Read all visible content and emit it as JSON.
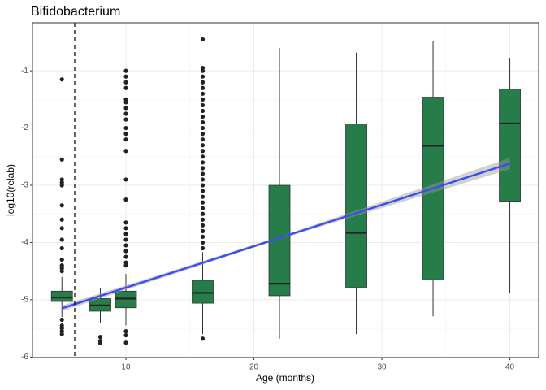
{
  "chart_data": {
    "type": "boxplot",
    "title": "Bifidobacterium",
    "x_label": "Age (months)",
    "y_label": "log10(relab)",
    "xlim": [
      2.7,
      42.25
    ],
    "ylim": [
      -6.01,
      -0.16
    ],
    "xticks": [
      10,
      20,
      30,
      40
    ],
    "yticks": [
      -6,
      -5,
      -4,
      -3,
      -2,
      -1
    ],
    "grid": true,
    "color": "#267d4a",
    "vline": 6,
    "boxes": [
      {
        "x": 5,
        "q1": -5.03,
        "median": -4.96,
        "q3": -4.85,
        "whisker_low": -5.3,
        "whisker_high": -4.6,
        "outliers": [
          -1.15,
          -2.55,
          -2.9,
          -2.95,
          -3.0,
          -3.35,
          -3.6,
          -3.75,
          -3.95,
          -4.1,
          -4.3,
          -4.4,
          -4.45,
          -4.5,
          -5.35,
          -5.45,
          -5.5,
          -5.55,
          -5.6
        ]
      },
      {
        "x": 8,
        "q1": -5.2,
        "median": -5.1,
        "q3": -4.98,
        "whisker_low": -5.4,
        "whisker_high": -4.8,
        "outliers": [
          -5.65,
          -5.72,
          -5.76
        ]
      },
      {
        "x": 10,
        "q1": -5.14,
        "median": -4.98,
        "q3": -4.85,
        "whisker_low": -5.45,
        "whisker_high": -4.55,
        "outliers": [
          -1.0,
          -1.1,
          -1.2,
          -1.3,
          -1.5,
          -1.55,
          -1.65,
          -1.75,
          -1.85,
          -2.0,
          -2.1,
          -2.2,
          -2.4,
          -2.9,
          -3.25,
          -3.65,
          -3.75,
          -3.85,
          -3.95,
          -4.05,
          -4.15,
          -4.25,
          -4.35,
          -4.4,
          -5.55,
          -5.62,
          -5.75
        ]
      },
      {
        "x": 16,
        "q1": -5.06,
        "median": -4.88,
        "q3": -4.66,
        "whisker_low": -5.6,
        "whisker_high": -4.17,
        "outliers": [
          -0.45,
          -0.95,
          -1.0,
          -1.1,
          -1.2,
          -1.3,
          -1.4,
          -1.5,
          -1.6,
          -1.7,
          -1.8,
          -1.9,
          -2.0,
          -2.1,
          -2.2,
          -2.3,
          -2.4,
          -2.5,
          -2.6,
          -2.7,
          -2.8,
          -2.9,
          -3.0,
          -3.1,
          -3.2,
          -3.3,
          -3.4,
          -3.5,
          -3.6,
          -3.7,
          -3.8,
          -3.9,
          -4.0,
          -4.1,
          -5.68
        ]
      },
      {
        "x": 22,
        "q1": -4.93,
        "median": -4.72,
        "q3": -3.0,
        "whisker_low": -5.68,
        "whisker_high": -0.6,
        "outliers": []
      },
      {
        "x": 28,
        "q1": -4.79,
        "median": -3.83,
        "q3": -1.93,
        "whisker_low": -5.6,
        "whisker_high": -0.68,
        "outliers": []
      },
      {
        "x": 34,
        "q1": -4.65,
        "median": -2.31,
        "q3": -1.46,
        "whisker_low": -5.29,
        "whisker_high": -0.48,
        "outliers": []
      },
      {
        "x": 40,
        "q1": -3.28,
        "median": -1.92,
        "q3": -1.32,
        "whisker_low": -4.88,
        "whisker_high": -0.78,
        "outliers": []
      }
    ],
    "fit": {
      "color": "#3b4cf0",
      "x": [
        5,
        22,
        40
      ],
      "y": [
        -5.15,
        -3.92,
        -2.62
      ],
      "lower": [
        -5.2,
        -3.94,
        -2.72
      ],
      "upper": [
        -5.1,
        -3.9,
        -2.52
      ]
    }
  }
}
